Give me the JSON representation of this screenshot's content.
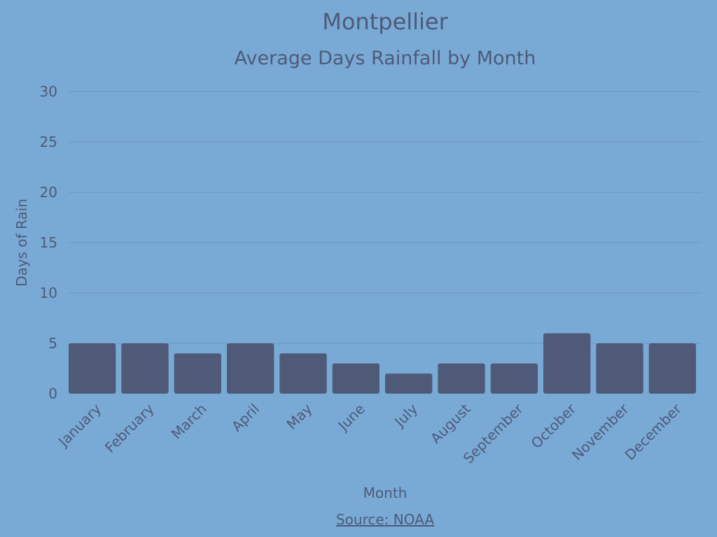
{
  "chart_data": {
    "type": "bar",
    "title": "Montpellier",
    "subtitle": "Average Days Rainfall by Month",
    "xlabel": "Month",
    "ylabel": "Days of Rain",
    "categories": [
      "January",
      "February",
      "March",
      "April",
      "May",
      "June",
      "July",
      "August",
      "September",
      "October",
      "November",
      "December"
    ],
    "values": [
      5,
      5,
      4,
      5,
      4,
      3,
      2,
      3,
      3,
      6,
      5,
      5
    ],
    "ylim": [
      0,
      30
    ],
    "yticks": [
      0,
      5,
      10,
      15,
      20,
      25,
      30
    ],
    "grid": true,
    "bar_color": "#4e5a78",
    "background_color": "#79aad6"
  },
  "source": {
    "label": "Source: NOAA"
  }
}
